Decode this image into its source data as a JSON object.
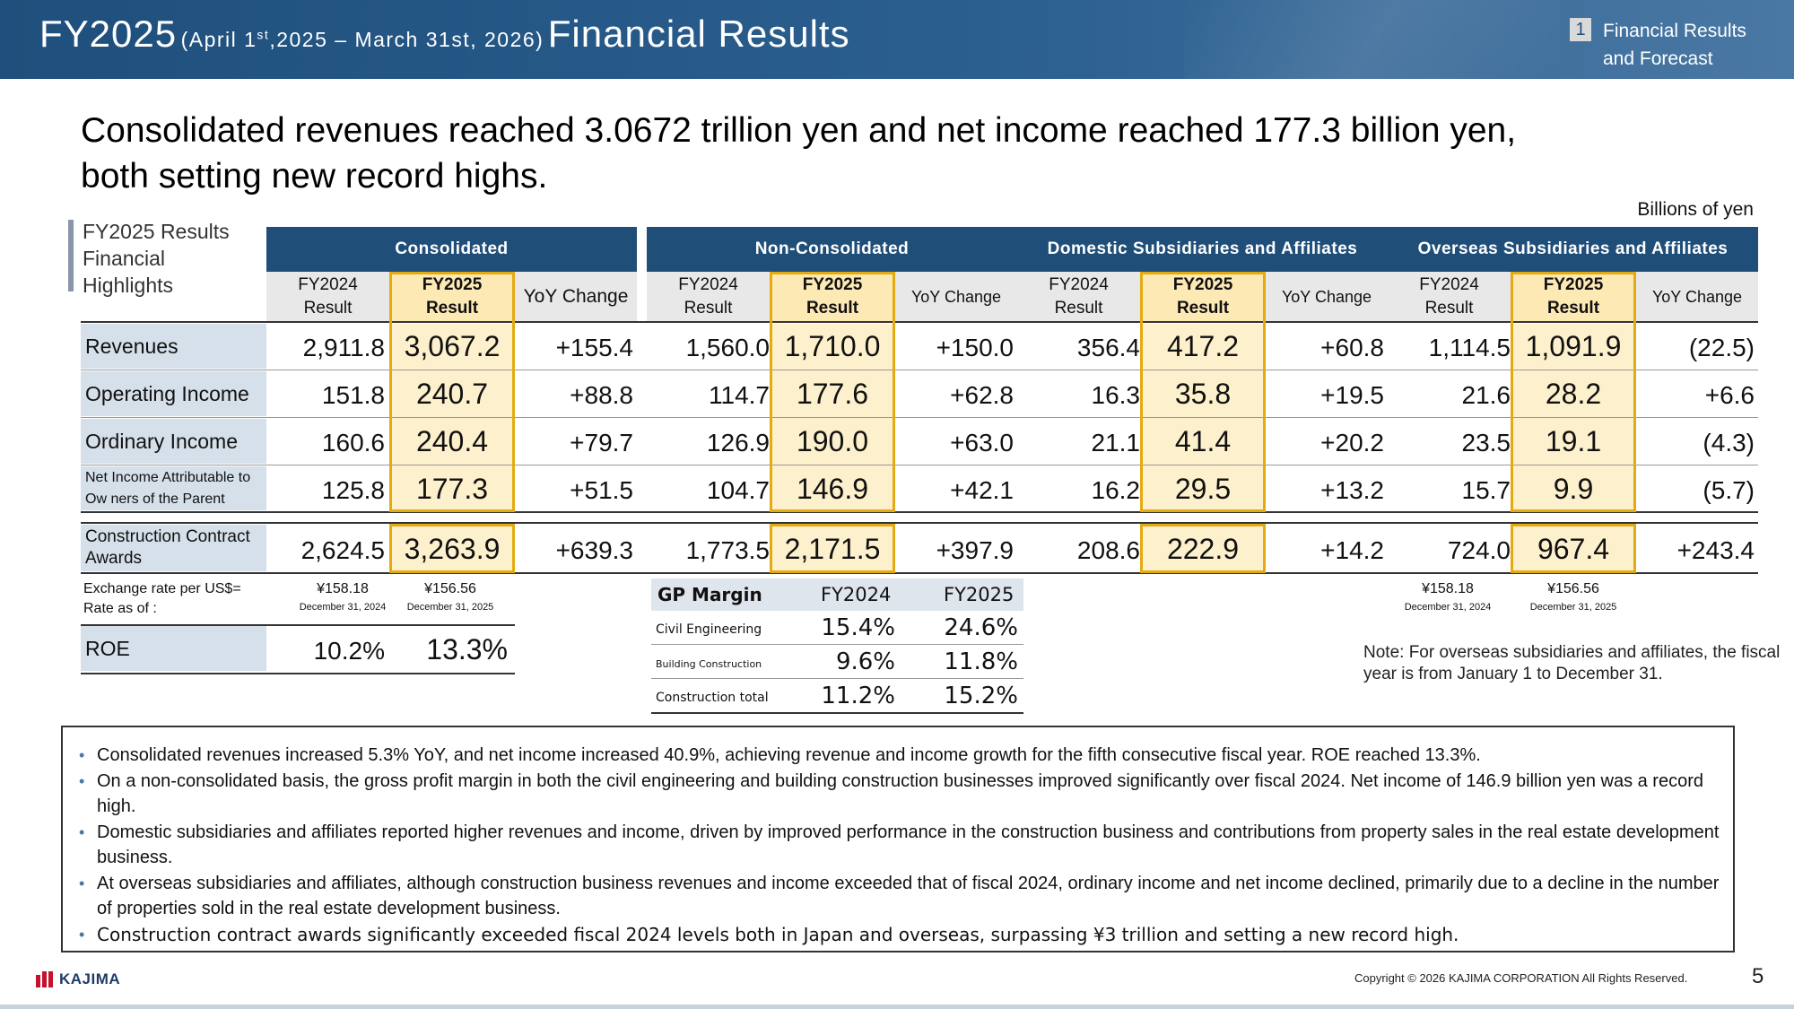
{
  "header": {
    "title_big": "FY2025",
    "period_pre": "(April 1",
    "period_sup": "st",
    "period_post": ",2025 – March 31st, 2026)",
    "title_rest": "Financial Results",
    "section_number": "1",
    "section_line1": "Financial Results",
    "section_line2": "and Forecast"
  },
  "headline": {
    "line1": "Consolidated revenues reached 3.0672 trillion yen and net income reached 177.3 billion yen,",
    "line2": "both setting new record highs."
  },
  "units": "Billions of yen",
  "highlights_title": {
    "line1": "FY2025 Results",
    "line2": "Financial",
    "line3": "Highlights"
  },
  "groups": [
    "Consolidated",
    "Non-Consolidated",
    "Domestic Subsidiaries and Affiliates",
    "Overseas Subsidiaries and Affiliates"
  ],
  "subheaders": {
    "fy2024_l1": "FY2024",
    "fy2024_l2": "Result",
    "fy2025_l1": "FY2025",
    "fy2025_l2": "Result",
    "yoy": "YoY Change"
  },
  "rows": [
    {
      "label": "Revenues",
      "values": [
        "2,911.8",
        "3,067.2",
        "+155.4",
        "1,560.0",
        "1,710.0",
        "+150.0",
        "356.4",
        "417.2",
        "+60.8",
        "1,114.5",
        "1,091.9",
        "(22.5)"
      ]
    },
    {
      "label": "Operating Income",
      "values": [
        "151.8",
        "240.7",
        "+88.8",
        "114.7",
        "177.6",
        "+62.8",
        "16.3",
        "35.8",
        "+19.5",
        "21.6",
        "28.2",
        "+6.6"
      ]
    },
    {
      "label": "Ordinary Income",
      "values": [
        "160.6",
        "240.4",
        "+79.7",
        "126.9",
        "190.0",
        "+63.0",
        "21.1",
        "41.4",
        "+20.2",
        "23.5",
        "19.1",
        "(4.3)"
      ]
    },
    {
      "label_l1": "Net Income Attributable to",
      "label_l2": "Ow ners of the Parent",
      "values": [
        "125.8",
        "177.3",
        "+51.5",
        "104.7",
        "146.9",
        "+42.1",
        "16.2",
        "29.5",
        "+13.2",
        "15.7",
        "9.9",
        "(5.7)"
      ]
    },
    {
      "label_l1": "Construction Contract",
      "label_l2": "Awards",
      "values": [
        "2,624.5",
        "3,263.9",
        "+639.3",
        "1,773.5",
        "2,171.5",
        "+397.9",
        "208.6",
        "222.9",
        "+14.2",
        "724.0",
        "967.4",
        "+243.4"
      ]
    }
  ],
  "exchange": {
    "label1": "Exchange rate per US$=",
    "label2": "Rate as of :",
    "cons_fy2024": "¥158.18",
    "cons_fy2025": "¥156.56",
    "cons_date2024": "December 31, 2024",
    "cons_date2025": "December 31, 2025",
    "ovs_fy2024": "¥158.18",
    "ovs_fy2025": "¥156.56",
    "ovs_date2024": "December 31, 2024",
    "ovs_date2025": "December 31, 2025"
  },
  "roe": {
    "label": "ROE",
    "fy2024": "10.2%",
    "fy2025": "13.3%"
  },
  "gp_margin": {
    "title": "GP Margin",
    "col1": "FY2024",
    "col2": "FY2025",
    "rows": [
      {
        "label": "Civil Engineering",
        "fy2024": "15.4%",
        "fy2025": "24.6%"
      },
      {
        "label": "Building Construction",
        "fy2024": "9.6%",
        "fy2025": "11.8%"
      },
      {
        "label": "Construction total",
        "fy2024": "11.2%",
        "fy2025": "15.2%"
      }
    ]
  },
  "note": "Note: For overseas subsidiaries and affiliates, the fiscal year is from January 1 to December 31.",
  "bullets": [
    "Consolidated revenues increased 5.3% YoY, and net income increased 40.9%, achieving revenue and income growth for the fifth consecutive fiscal year. ROE reached 13.3%.",
    "On a non-consolidated basis, the gross profit margin in both the civil engineering and building construction businesses improved significantly over fiscal 2024. Net income of 146.9 billion yen was a record high.",
    "Domestic subsidiaries and affiliates reported higher revenues and income, driven by improved performance in the construction business and contributions from property sales in the real estate development business.",
    "At overseas subsidiaries and affiliates, although construction business revenues and income exceeded that of fiscal 2024, ordinary income and net income declined, primarily due to a decline in the number of properties sold in the real estate development business.",
    "Construction contract awards significantly exceeded fiscal 2024 levels both in Japan and overseas, surpassing ¥3 trillion and setting a new record high."
  ],
  "footer": {
    "logo": "KAJIMA",
    "copyright": "Copyright © 2026 KAJIMA CORPORATION All Rights Reserved.",
    "page": "5"
  }
}
